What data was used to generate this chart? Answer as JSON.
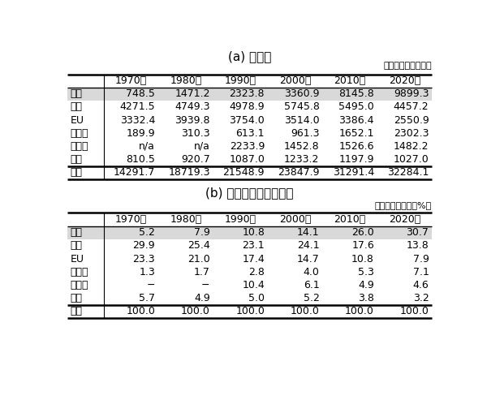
{
  "title_a": "(a) 排出量",
  "title_b": "(b) 世界に占めるシェア",
  "unit_a": "（単位：百万トン）",
  "unit_b": "（単位：シェア、%）",
  "columns": [
    "",
    "1970年",
    "1980年",
    "1990年",
    "2000年",
    "2010年",
    "2020年"
  ],
  "table_a": [
    [
      "中国",
      "748.5",
      "1471.2",
      "2323.8",
      "3360.9",
      "8145.8",
      "9899.3"
    ],
    [
      "米国",
      "4271.5",
      "4749.3",
      "4978.9",
      "5745.8",
      "5495.0",
      "4457.2"
    ],
    [
      "EU",
      "3332.4",
      "3939.8",
      "3754.0",
      "3514.0",
      "3386.4",
      "2550.9"
    ],
    [
      "インド",
      "189.9",
      "310.3",
      "613.1",
      "961.3",
      "1652.1",
      "2302.3"
    ],
    [
      "ロシア",
      "n/a",
      "n/a",
      "2233.9",
      "1452.8",
      "1526.6",
      "1482.2"
    ],
    [
      "日本",
      "810.5",
      "920.7",
      "1087.0",
      "1233.2",
      "1197.9",
      "1027.0"
    ],
    [
      "世界",
      "14291.7",
      "18719.3",
      "21548.9",
      "23847.9",
      "31291.4",
      "32284.1"
    ]
  ],
  "table_b": [
    [
      "中国",
      "5.2",
      "7.9",
      "10.8",
      "14.1",
      "26.0",
      "30.7"
    ],
    [
      "米国",
      "29.9",
      "25.4",
      "23.1",
      "24.1",
      "17.6",
      "13.8"
    ],
    [
      "EU",
      "23.3",
      "21.0",
      "17.4",
      "14.7",
      "10.8",
      "7.9"
    ],
    [
      "インド",
      "1.3",
      "1.7",
      "2.8",
      "4.0",
      "5.3",
      "7.1"
    ],
    [
      "ロシア",
      "−",
      "−",
      "10.4",
      "6.1",
      "4.9",
      "4.6"
    ],
    [
      "日本",
      "5.7",
      "4.9",
      "5.0",
      "5.2",
      "3.8",
      "3.2"
    ],
    [
      "世界",
      "100.0",
      "100.0",
      "100.0",
      "100.0",
      "100.0",
      "100.0"
    ]
  ],
  "highlight_row": 0,
  "highlight_color": "#d9d9d9",
  "bg_color": "#ffffff",
  "fig_width": 6.0,
  "fig_height": 4.93,
  "dpi": 100
}
